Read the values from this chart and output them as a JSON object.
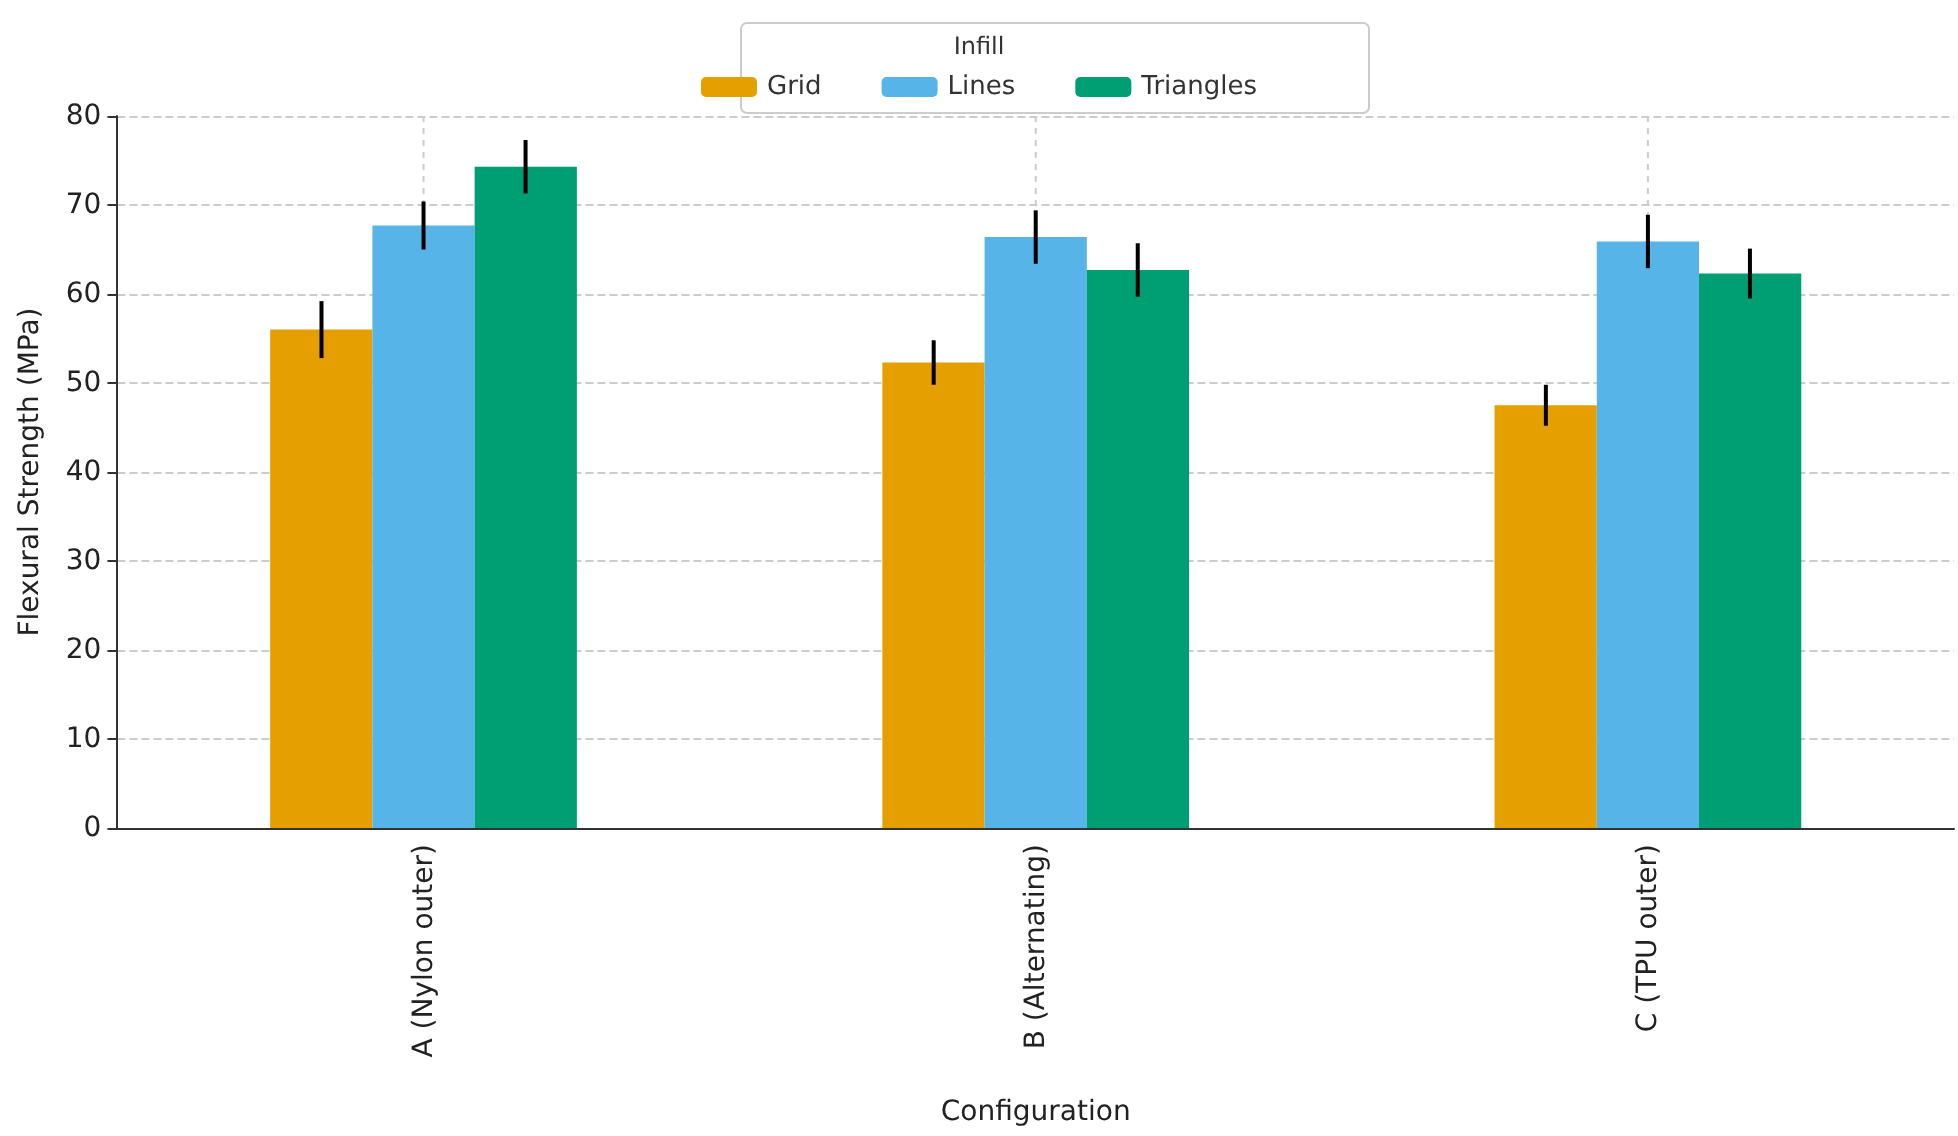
{
  "chart_data": {
    "type": "bar",
    "xlabel": "Configuration",
    "ylabel": "Flexural Strength (MPa)",
    "legend_title": "Infill",
    "categories": [
      "A (Nylon outer)",
      "B (Alternating)",
      "C (TPU outer)"
    ],
    "series": [
      {
        "name": "Grid",
        "color": "#e69f00",
        "values": [
          56,
          52.3,
          47.5
        ],
        "errors": [
          3.2,
          2.5,
          2.3
        ]
      },
      {
        "name": "Lines",
        "color": "#56b4e9",
        "values": [
          67.7,
          66.4,
          65.9
        ],
        "errors": [
          2.7,
          3,
          3
        ]
      },
      {
        "name": "Triangles",
        "color": "#009e73",
        "values": [
          74.3,
          62.7,
          62.3
        ],
        "errors": [
          3,
          3,
          2.8
        ]
      }
    ],
    "ylim": [
      0,
      80
    ],
    "yticks": [
      0,
      10,
      20,
      30,
      40,
      50,
      60,
      70,
      80
    ],
    "grid": true,
    "legend": "top"
  }
}
